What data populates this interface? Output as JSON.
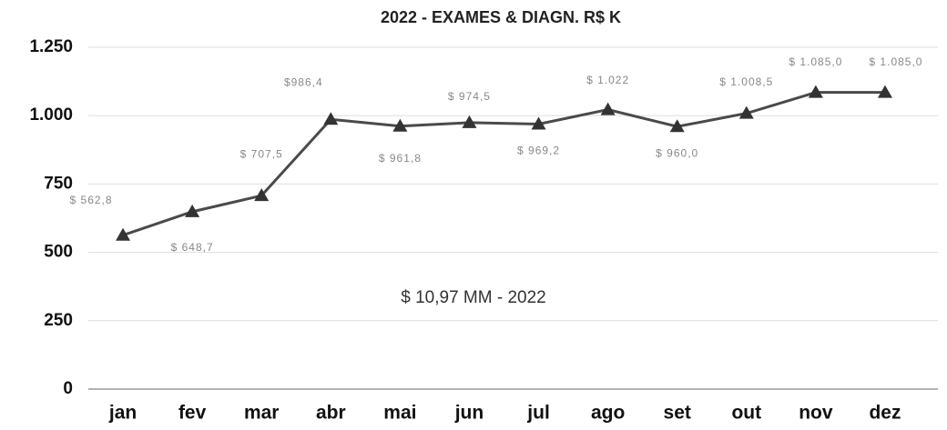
{
  "chart_data": {
    "type": "line",
    "title": "2022 - EXAMES & DIAGN. R$ K",
    "annotation": "$ 10,97 MM - 2022",
    "categories": [
      "jan",
      "fev",
      "mar",
      "abr",
      "mai",
      "jun",
      "jul",
      "ago",
      "set",
      "out",
      "nov",
      "dez"
    ],
    "series": [
      {
        "name": "2022",
        "color": "#4a4a4a",
        "values": [
          562.8,
          648.7,
          707.5,
          986.4,
          961.8,
          974.5,
          969.2,
          1022,
          960.0,
          1008.5,
          1085.0,
          1085.0
        ],
        "value_labels": [
          "$ 562,8",
          "$ 648,7",
          "$ 707,5",
          "$986,4",
          "$ 961,8",
          "$ 974,5",
          "$ 969,2",
          "$ 1.022",
          "$ 960,0",
          "$ 1.008,5",
          "$ 1.085,0",
          "$ 1.085,0"
        ]
      }
    ],
    "ylim": [
      0,
      1250
    ],
    "yticks": [
      0,
      250,
      500,
      750,
      {
        "value": 1000,
        "label": "1.000"
      },
      {
        "value": 1250,
        "label": "1.250"
      }
    ],
    "grid": true
  }
}
